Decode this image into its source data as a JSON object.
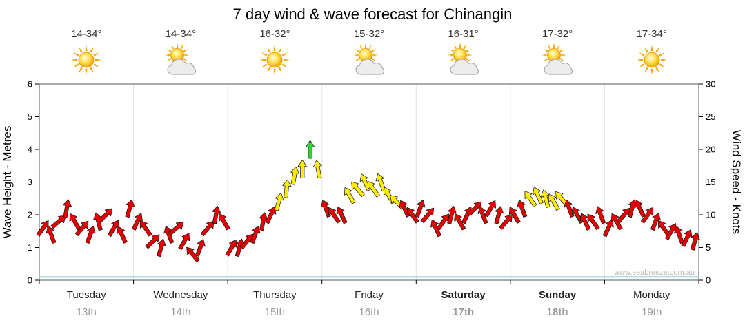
{
  "title": "7 day wind & wave forecast for Chinangin",
  "watermark": "www.seabreeze.com.au",
  "left_axis": {
    "label": "Wave Height - Metres",
    "ticks": [
      "0",
      "1",
      "2",
      "3",
      "4",
      "5",
      "6"
    ],
    "max": 6
  },
  "right_axis": {
    "label": "Wind Speed - Knots",
    "ticks": [
      "0",
      "5",
      "10",
      "15",
      "20",
      "25",
      "30"
    ],
    "max": 30
  },
  "days": [
    {
      "name": "Tuesday",
      "date": "13th",
      "temp": "14-34°",
      "icon": "sun",
      "weekend": false
    },
    {
      "name": "Wednesday",
      "date": "14th",
      "temp": "14-34°",
      "icon": "sun-cloud",
      "weekend": false
    },
    {
      "name": "Thursday",
      "date": "15th",
      "temp": "16-32°",
      "icon": "sun",
      "weekend": false
    },
    {
      "name": "Friday",
      "date": "16th",
      "temp": "15-32°",
      "icon": "sun-cloud",
      "weekend": false
    },
    {
      "name": "Saturday",
      "date": "17th",
      "temp": "16-31°",
      "icon": "sun-cloud",
      "weekend": true
    },
    {
      "name": "Sunday",
      "date": "18th",
      "temp": "17-32°",
      "icon": "sun-cloud",
      "weekend": true
    },
    {
      "name": "Monday",
      "date": "19th",
      "temp": "17-34°",
      "icon": "sun",
      "weekend": false
    }
  ],
  "chart_data": {
    "type": "scatter",
    "subtype": "wind-arrows-with-wave-line",
    "title": "7 day wind & wave forecast for Chinangin",
    "x_categories": [
      "Tuesday 13th",
      "Wednesday 14th",
      "Thursday 15th",
      "Friday 16th",
      "Saturday 17th",
      "Sunday 18th",
      "Monday 19th"
    ],
    "points_per_day": 12,
    "wind_speed_knots": [
      [
        8,
        7,
        9,
        11,
        9,
        8,
        7,
        9,
        10,
        8,
        7,
        11
      ],
      [
        9,
        8,
        6,
        5,
        7,
        8,
        6,
        4,
        5,
        8,
        10,
        9
      ],
      [
        5,
        5,
        6,
        7,
        9,
        10,
        12,
        14,
        16,
        17,
        20,
        17
      ],
      [
        11,
        10,
        10,
        13,
        14,
        15,
        14,
        15,
        13,
        12,
        11,
        10
      ],
      [
        11,
        10,
        8,
        9,
        10,
        9,
        10,
        11,
        10,
        11,
        10,
        9
      ],
      [
        10,
        11,
        12.5,
        13,
        12.5,
        12,
        12.5,
        11,
        10,
        9,
        9,
        10
      ],
      [
        8,
        9,
        10,
        11,
        11,
        10,
        9,
        8,
        7.5,
        7,
        6.5,
        6
      ]
    ],
    "wind_direction_deg": [
      [
        35,
        -20,
        50,
        10,
        -30,
        40,
        20,
        -15,
        45,
        30,
        -25,
        15
      ],
      [
        25,
        -35,
        45,
        15,
        -20,
        50,
        30,
        -40,
        20,
        40,
        10,
        -30
      ],
      [
        30,
        15,
        40,
        20,
        10,
        25,
        15,
        5,
        10,
        0,
        0,
        -10
      ],
      [
        -20,
        -35,
        -25,
        -30,
        -40,
        -25,
        -35,
        -20,
        -30,
        -45,
        -25,
        -35
      ],
      [
        20,
        40,
        -25,
        35,
        15,
        -30,
        25,
        45,
        -20,
        30,
        15,
        40
      ],
      [
        -30,
        -20,
        -35,
        -25,
        -15,
        -30,
        -40,
        -20,
        -30,
        -25,
        -35,
        -20
      ],
      [
        25,
        -30,
        40,
        15,
        -25,
        35,
        20,
        -35,
        30,
        -20,
        25,
        15
      ]
    ],
    "wave_height_m": [
      0.1,
      0.1,
      0.1,
      0.1,
      0.1,
      0.1,
      0.1
    ],
    "ylim_left_m": [
      0,
      6
    ],
    "ylim_right_knots": [
      0,
      30
    ],
    "speed_color_thresholds": {
      "yellow_min_knots": 12,
      "green_min_knots": 18
    },
    "colors": {
      "red": "#e60000",
      "yellow": "#ffec00",
      "green": "#2fd42f",
      "wave_line": "#8bd4e6"
    },
    "grid": "day-boundaries-only",
    "legend": "none"
  }
}
